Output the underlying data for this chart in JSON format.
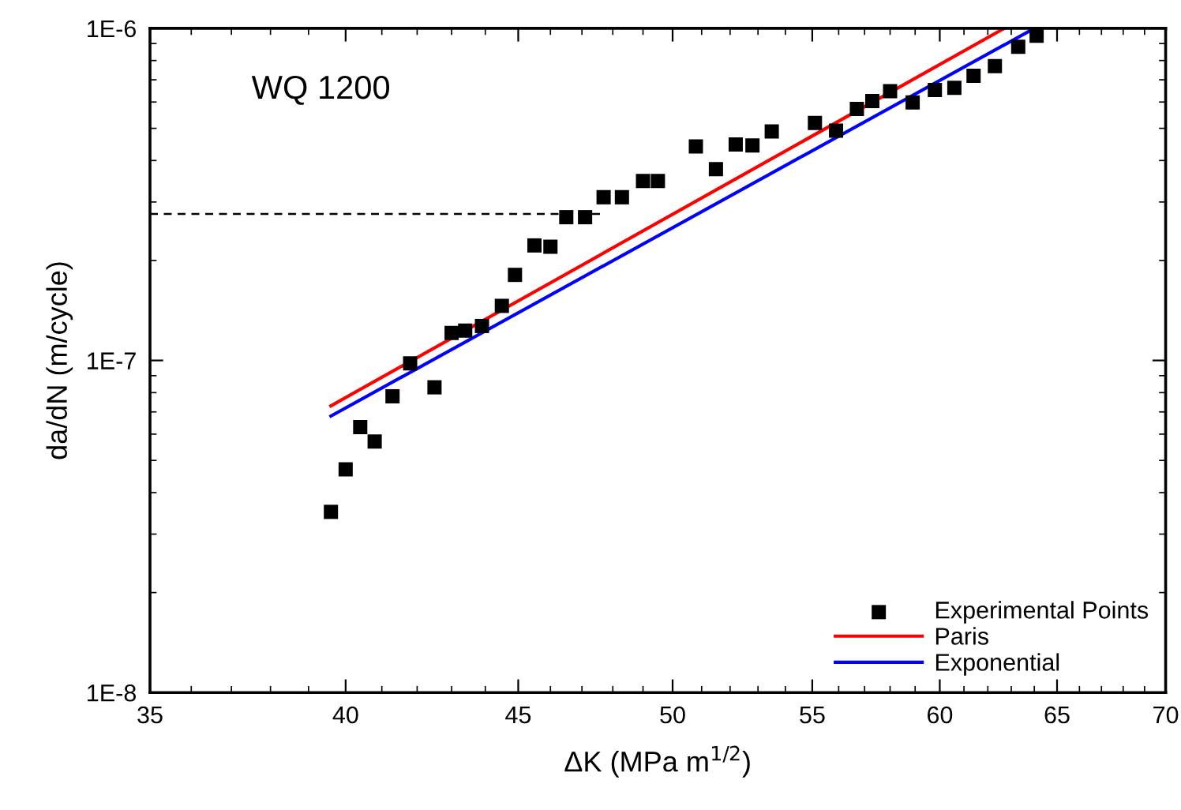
{
  "chart_data": {
    "type": "scatter",
    "xlabel": "ΔK (MPa m$^{1/2}$)",
    "ylabel": "da/dN (m/cycle)",
    "annotations": [
      "WQ 1200"
    ],
    "log": "xy",
    "grid": false,
    "legend": "bottom right",
    "xlim": [
      35,
      70
    ],
    "xticks": [
      35,
      40,
      45,
      50,
      55,
      60,
      65,
      70
    ],
    "ylim": [
      1e-08,
      1e-06
    ],
    "yticks": [
      {
        "value": 1e-08,
        "label": "1E-8"
      },
      {
        "value": 1e-07,
        "label": "1E-7"
      },
      {
        "value": 1e-06,
        "label": "1E-6"
      }
    ],
    "series": [
      {
        "name": "Experimental Points",
        "marker": "square",
        "color": "#000000",
        "x": [
          39.6,
          40.0,
          40.4,
          40.8,
          41.3,
          41.8,
          42.5,
          43.0,
          43.4,
          43.9,
          44.5,
          44.9,
          45.5,
          46.0,
          46.5,
          47.1,
          47.7,
          48.3,
          49.0,
          49.5,
          50.8,
          51.5,
          52.2,
          52.8,
          53.5,
          55.1,
          55.9,
          56.7,
          57.3,
          58.0,
          58.9,
          59.8,
          60.6,
          61.4,
          62.3,
          63.3,
          64.1
        ],
        "values": [
          3.5e-08,
          4.7e-08,
          6.3e-08,
          5.7e-08,
          7.8e-08,
          9.8e-08,
          8.3e-08,
          1.21e-07,
          1.23e-07,
          1.27e-07,
          1.46e-07,
          1.81e-07,
          2.22e-07,
          2.2e-07,
          2.7e-07,
          2.7e-07,
          3.1e-07,
          3.1e-07,
          3.47e-07,
          3.47e-07,
          4.41e-07,
          3.77e-07,
          4.47e-07,
          4.44e-07,
          4.89e-07,
          5.19e-07,
          4.92e-07,
          5.72e-07,
          6.04e-07,
          6.47e-07,
          5.98e-07,
          6.52e-07,
          6.62e-07,
          7.2e-07,
          7.7e-07,
          8.8e-07,
          9.5e-07
        ]
      },
      {
        "name": "Paris",
        "type": "line",
        "color": "#ff0000",
        "x": [
          39.6,
          62.7
        ],
        "values": [
          7.3e-08,
          1e-06
        ]
      },
      {
        "name": "Exponential",
        "type": "line",
        "color": "#0000ff",
        "x": [
          39.6,
          64.0
        ],
        "values": [
          6.8e-08,
          1e-06
        ]
      },
      {
        "type": "line",
        "line_style": "dashed",
        "color": "#000000",
        "x": [
          35,
          47.6
        ],
        "values": [
          2.76e-07,
          2.76e-07
        ]
      }
    ]
  }
}
